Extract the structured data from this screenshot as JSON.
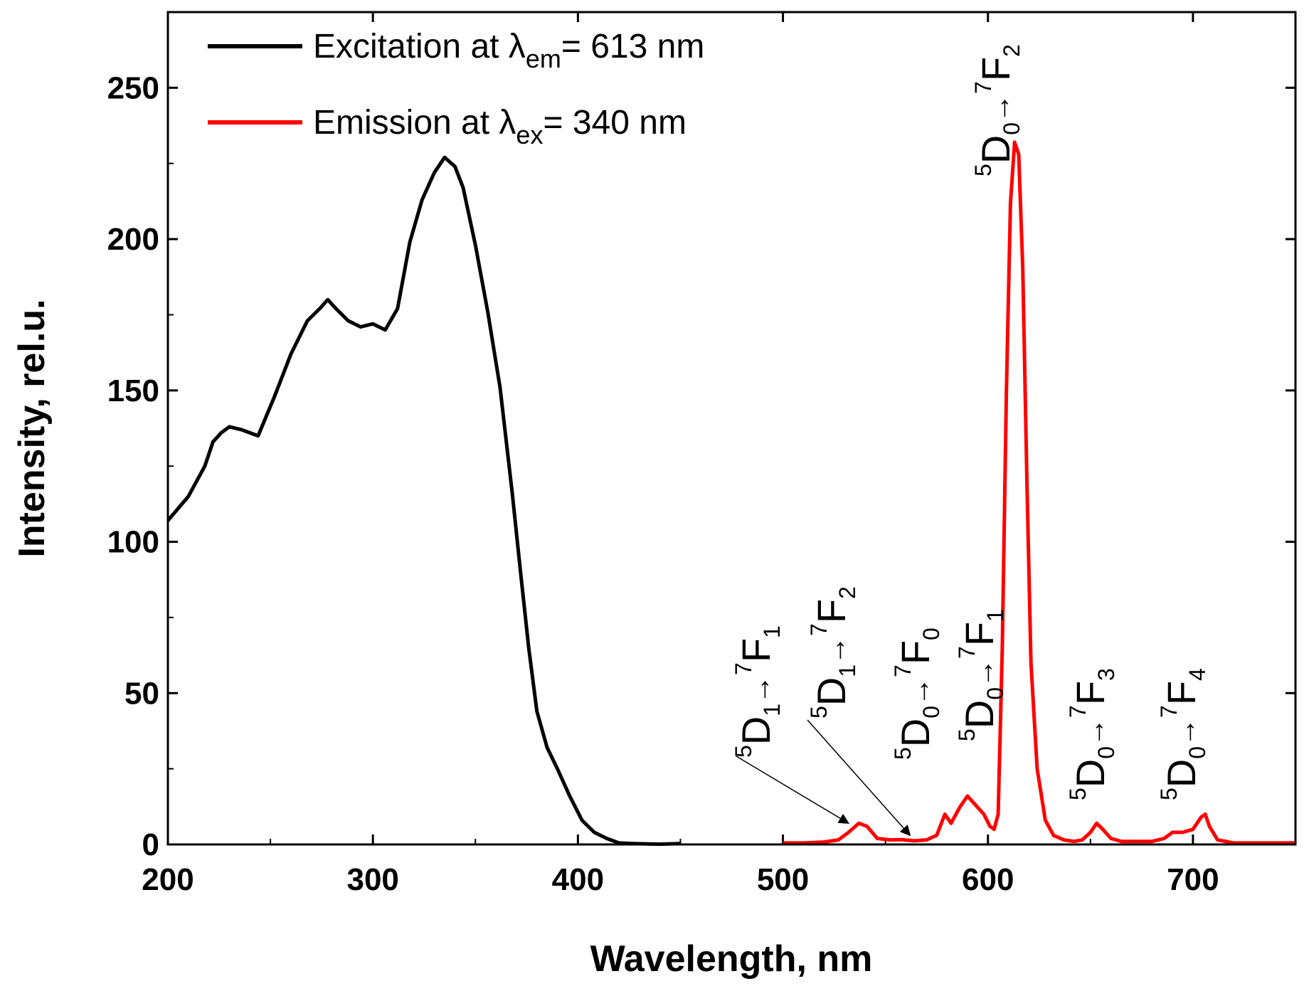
{
  "chart_data": {
    "type": "line",
    "xlabel": "Wavelength, nm",
    "ylabel": "Intensity, rel.u.",
    "xlim": [
      200,
      750
    ],
    "ylim": [
      0,
      275
    ],
    "xticks": [
      200,
      300,
      400,
      500,
      600,
      700
    ],
    "yticks": [
      0,
      50,
      100,
      150,
      200,
      250
    ],
    "legend_position": "top-left",
    "series": [
      {
        "legend_prefix": "Excitation at λ",
        "legend_sub": "em",
        "legend_suffix": "= 613 nm",
        "color": "#000000",
        "x": [
          200,
          210,
          218,
          222,
          226,
          230,
          236,
          244,
          252,
          260,
          268,
          274,
          278,
          282,
          288,
          294,
          300,
          306,
          312,
          318,
          324,
          330,
          335,
          340,
          344,
          350,
          356,
          362,
          368,
          372,
          376,
          380,
          385,
          390,
          396,
          402,
          408,
          414,
          420,
          426,
          432,
          440,
          450
        ],
        "y": [
          107,
          115,
          125,
          133,
          136,
          138,
          137,
          135,
          148,
          162,
          173,
          177,
          180,
          177,
          173,
          171,
          172,
          170,
          177,
          199,
          213,
          222,
          227,
          224,
          217,
          198,
          176,
          151,
          116,
          90,
          65,
          44,
          32,
          25,
          16,
          8,
          4,
          2,
          0.5,
          0.3,
          0.2,
          0.1,
          0.3
        ]
      },
      {
        "legend_prefix": "Emission at λ",
        "legend_sub": "ex",
        "legend_suffix": "= 340 nm",
        "color": "#ff0000",
        "x": [
          500,
          510,
          520,
          527,
          532,
          537,
          541,
          546,
          552,
          558,
          564,
          570,
          575,
          579,
          582,
          586,
          590,
          594,
          598,
          601,
          603,
          605,
          607,
          609,
          611,
          613,
          615,
          617,
          619,
          621,
          624,
          628,
          632,
          637,
          642,
          646,
          650,
          653,
          656,
          660,
          665,
          670,
          680,
          686,
          690,
          695,
          700,
          704,
          706,
          708,
          712,
          720,
          735,
          750
        ],
        "y": [
          0.5,
          0.5,
          0.8,
          1.5,
          4,
          7,
          6,
          2,
          1.5,
          1.6,
          1.2,
          1.5,
          3,
          10,
          7,
          12,
          16,
          13,
          10,
          6,
          5,
          10,
          65,
          150,
          212,
          232,
          228,
          190,
          120,
          60,
          25,
          8,
          3,
          1.5,
          1,
          1.5,
          4,
          7,
          5,
          2,
          1,
          1,
          1,
          2,
          4,
          4,
          5,
          9,
          10,
          6,
          1.5,
          0.5,
          0.5,
          0.5
        ]
      }
    ],
    "annotations": [
      {
        "sup_left": "5",
        "main1": "D",
        "sub1": "1",
        "main2": "F",
        "sup2": "7",
        "sub2": "1"
      },
      {
        "sup_left": "5",
        "main1": "D",
        "sub1": "1",
        "main2": "F",
        "sup2": "7",
        "sub2": "2"
      },
      {
        "sup_left": "5",
        "main1": "D",
        "sub1": "0",
        "main2": "F",
        "sup2": "7",
        "sub2": "0"
      },
      {
        "sup_left": "5",
        "main1": "D",
        "sub1": "0",
        "main2": "F",
        "sup2": "7",
        "sub2": "1"
      },
      {
        "sup_left": "5",
        "main1": "D",
        "sub1": "0",
        "main2": "F",
        "sup2": "7",
        "sub2": "2"
      },
      {
        "sup_left": "5",
        "main1": "D",
        "sub1": "0",
        "main2": "F",
        "sup2": "7",
        "sub2": "3"
      },
      {
        "sup_left": "5",
        "main1": "D",
        "sub1": "0",
        "main2": "F",
        "sup2": "7",
        "sub2": "4"
      }
    ]
  }
}
